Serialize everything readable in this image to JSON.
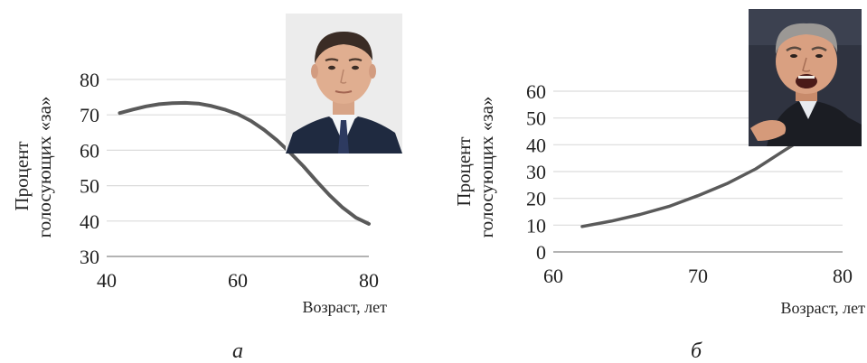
{
  "chart_data": [
    {
      "type": "line",
      "panel_label": "а",
      "ylabel_line1": "Процент",
      "ylabel_line2": "голосующих «за»",
      "xlabel": "Возраст, лет",
      "xlim": [
        40,
        80
      ],
      "ylim": [
        30,
        80
      ],
      "x_ticks": [
        40,
        60,
        80
      ],
      "y_ticks": [
        30,
        40,
        50,
        60,
        70,
        80
      ],
      "grid": "horizontal",
      "series": [
        {
          "color": "#5a5a5a",
          "x": [
            42,
            44,
            46,
            48,
            50,
            52,
            54,
            56,
            58,
            60,
            62,
            64,
            66,
            68,
            70,
            72,
            74,
            76,
            78,
            80
          ],
          "y": [
            70.5,
            71.5,
            72.4,
            73.0,
            73.3,
            73.4,
            73.2,
            72.5,
            71.5,
            70.2,
            68.3,
            65.8,
            62.8,
            59.3,
            55.5,
            51.3,
            47.3,
            43.8,
            41.0,
            39.2
          ]
        }
      ],
      "inset_photo": "politician-portrait-suit"
    },
    {
      "type": "line",
      "panel_label": "б",
      "ylabel_line1": "Процент",
      "ylabel_line2": "голосующих «за»",
      "xlabel": "Возраст, лет",
      "xlim": [
        60,
        80
      ],
      "ylim": [
        0,
        60
      ],
      "x_ticks": [
        60,
        70,
        80
      ],
      "y_ticks": [
        0,
        10,
        20,
        30,
        40,
        50,
        60
      ],
      "grid": "horizontal",
      "series": [
        {
          "color": "#5a5a5a",
          "x": [
            62,
            64,
            66,
            68,
            70,
            72,
            74,
            76,
            77.5
          ],
          "y": [
            9.5,
            11.5,
            14,
            17,
            21,
            25.5,
            31,
            38,
            43
          ]
        }
      ],
      "inset_photo": "politician-portrait-shouting"
    }
  ]
}
